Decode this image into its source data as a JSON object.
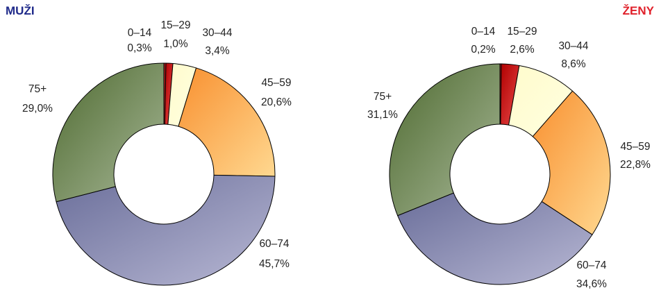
{
  "chart_data": [
    {
      "type": "pie",
      "title": "MUŽI",
      "title_color": "#1f2a8a",
      "categories": [
        "0–14",
        "15–29",
        "30–44",
        "45–59",
        "60–74",
        "75+"
      ],
      "values": [
        0.3,
        1.0,
        3.4,
        20.6,
        45.7,
        29.0
      ],
      "value_labels": [
        "0,3%",
        "1,0%",
        "3,4%",
        "20,6%",
        "45,7%",
        "29,0%"
      ],
      "hole": true
    },
    {
      "type": "pie",
      "title": "ŽENY",
      "title_color": "#e0202a",
      "categories": [
        "0–14",
        "15–29",
        "30–44",
        "45–59",
        "60–74",
        "75+"
      ],
      "values": [
        0.2,
        2.6,
        8.6,
        22.8,
        34.6,
        31.1
      ],
      "value_labels": [
        "0,2%",
        "2,6%",
        "8,6%",
        "22,8%",
        "34,6%",
        "31,1%"
      ],
      "hole": true
    }
  ],
  "segment_colors": [
    [
      "#8a1010",
      "#e04040"
    ],
    [
      "#b00000",
      "#e84848"
    ],
    [
      "#fffbcc",
      "#ffffe0"
    ],
    [
      "#f89030",
      "#ffd890"
    ],
    [
      "#6a6e9a",
      "#b8b8d4"
    ],
    [
      "#4e6a30",
      "#a8b898"
    ]
  ]
}
